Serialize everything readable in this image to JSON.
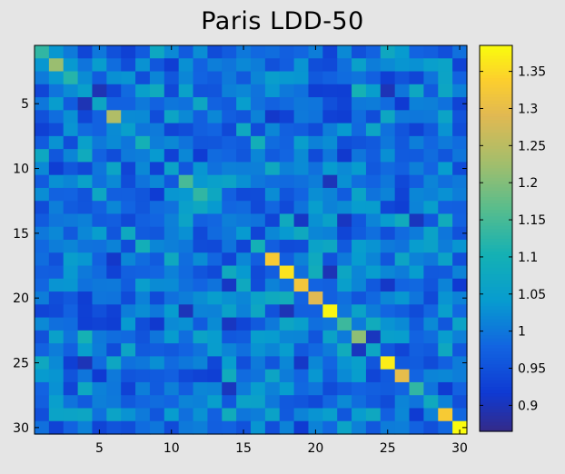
{
  "chart_data": {
    "type": "heatmap",
    "title": "Paris LDD-50",
    "xlabel": "",
    "ylabel": "",
    "x_range": [
      1,
      30
    ],
    "y_range": [
      1,
      30
    ],
    "x_ticks": [
      5,
      10,
      15,
      20,
      25,
      30
    ],
    "y_ticks": [
      5,
      10,
      15,
      20,
      25,
      30
    ],
    "colormap": "parula",
    "colorbar": {
      "range": [
        0.865,
        1.385
      ],
      "ticks": [
        0.9,
        0.95,
        1,
        1.05,
        1.1,
        1.15,
        1.2,
        1.25,
        1.3,
        1.35
      ],
      "labels": [
        "0.9",
        "0.95",
        "1",
        "1.05",
        "1.1",
        "1.15",
        "1.2",
        "1.25",
        "1.3",
        "1.35"
      ]
    },
    "diagonal_values": [
      1.13,
      1.22,
      1.12,
      1.05,
      1.07,
      1.24,
      1.05,
      1.1,
      1.04,
      1.06,
      1.15,
      1.13,
      1.04,
      1.01,
      1.04,
      1.1,
      1.33,
      1.36,
      1.32,
      1.29,
      1.38,
      1.14,
      1.21,
      1.07,
      1.37,
      1.3,
      1.13,
      1.08,
      1.33,
      1.39
    ],
    "offdiagonal_range": [
      0.87,
      1.12
    ],
    "grid": false
  }
}
